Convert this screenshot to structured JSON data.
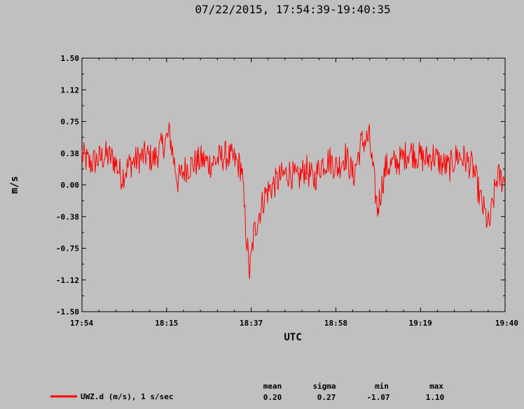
{
  "chart_data": {
    "type": "line",
    "title": "07/22/2015, 17:54:39-19:40:35",
    "xlabel": "UTC",
    "ylabel": "m/s",
    "ylim": [
      -1.5,
      1.5
    ],
    "y_ticks": [
      "1.50",
      "1.12",
      "0.75",
      "0.38",
      "0.00",
      "-0.38",
      "-0.75",
      "-1.12",
      "-1.50"
    ],
    "x_ticks": [
      "17:54",
      "18:15",
      "18:37",
      "18:58",
      "19:19",
      "19:40"
    ],
    "series": [
      {
        "name": "UWZ.d (m/s), 1 s/sec",
        "color": "#ff0000",
        "x_minutes": [
          0,
          2,
          4,
          6,
          8,
          10,
          12,
          14,
          16,
          18,
          20,
          22,
          23,
          24,
          26,
          28,
          30,
          32,
          34,
          36,
          38,
          40,
          41,
          42,
          43,
          44,
          46,
          48,
          50,
          52,
          54,
          56,
          58,
          60,
          62,
          64,
          66,
          68,
          70,
          72,
          74,
          76,
          78,
          80,
          82,
          84,
          86,
          88,
          90,
          92,
          94,
          96,
          98,
          100,
          102,
          104,
          106
        ],
        "values": [
          0.35,
          0.25,
          0.3,
          0.35,
          0.3,
          0.1,
          0.25,
          0.3,
          0.35,
          0.3,
          0.45,
          0.6,
          0.3,
          0.05,
          0.2,
          0.25,
          0.3,
          0.25,
          0.3,
          0.35,
          0.3,
          0.2,
          -0.5,
          -1.05,
          -0.6,
          -0.4,
          -0.1,
          0.0,
          0.1,
          0.15,
          0.05,
          0.2,
          0.05,
          0.25,
          0.3,
          0.2,
          0.35,
          0.1,
          0.5,
          0.55,
          -0.3,
          0.2,
          0.25,
          0.3,
          0.4,
          0.35,
          0.3,
          0.35,
          0.25,
          0.2,
          0.35,
          0.3,
          0.2,
          -0.2,
          -0.5,
          0.1,
          0.05
        ]
      }
    ]
  },
  "legend": {
    "label": "UWZ.d (m/s), 1 s/sec"
  },
  "stats": {
    "headers": [
      "mean",
      "sigma",
      "min",
      "max"
    ],
    "values": [
      "0.20",
      "0.27",
      "-1.07",
      "1.10"
    ]
  }
}
